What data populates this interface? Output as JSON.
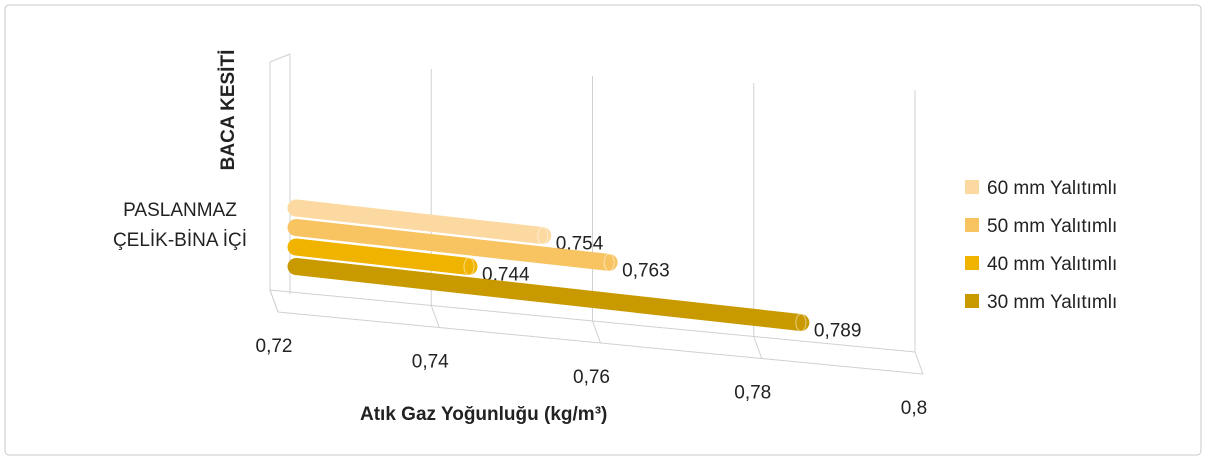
{
  "chart_data": {
    "type": "bar3d",
    "x_label": "Atık Gaz Yoğunluğu (kg/m³)",
    "y_label": "BACA KESİTİ",
    "categories": [
      "PASLANMAZ ÇELİK-BİNA İÇİ"
    ],
    "series": [
      {
        "name": "60 mm Yalıtımlı",
        "color": "#fcd9a0",
        "values": [
          0.754
        ],
        "value_labels": [
          "0,754"
        ]
      },
      {
        "name": "50 mm Yalıtımlı",
        "color": "#f8c462",
        "values": [
          0.763
        ],
        "value_labels": [
          "0,763"
        ]
      },
      {
        "name": "40 mm Yalıtımlı",
        "color": "#f0b400",
        "values": [
          0.744
        ],
        "value_labels": [
          "0,744"
        ]
      },
      {
        "name": "30 mm Yalıtımlı",
        "color": "#c99a00",
        "values": [
          0.789
        ],
        "value_labels": [
          "0,789"
        ]
      }
    ],
    "xlim": [
      0.72,
      0.8
    ],
    "xticks": [
      {
        "value": 0.72,
        "label": "0,72"
      },
      {
        "value": 0.74,
        "label": "0,74"
      },
      {
        "value": 0.76,
        "label": "0,76"
      },
      {
        "value": 0.78,
        "label": "0,78"
      },
      {
        "value": 0.8,
        "label": "0,8"
      }
    ],
    "grid": true,
    "legend": "right"
  }
}
